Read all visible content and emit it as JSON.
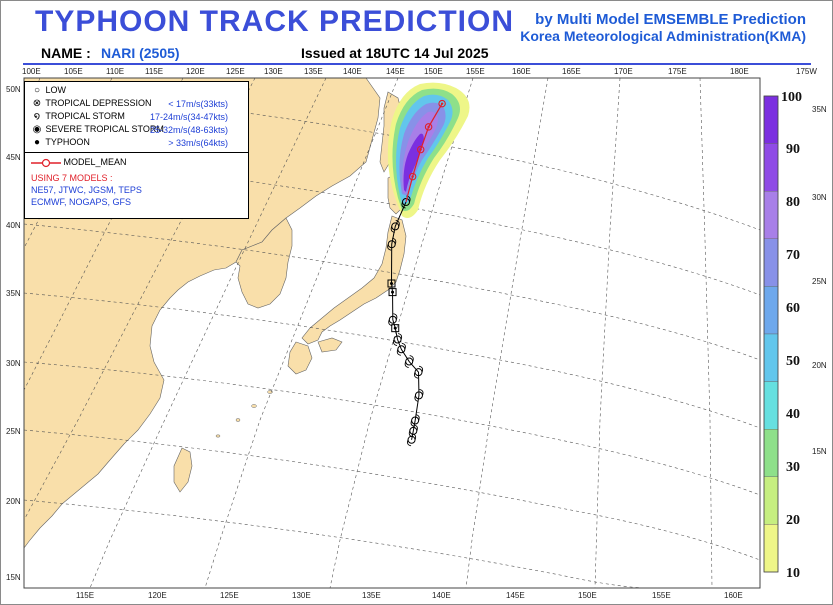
{
  "header": {
    "title": "TYPHOON  TRACK  PREDICTION",
    "subtitle_1": "by Multi Model EMSEMBLE Prediction",
    "subtitle_2": "Korea Meteorological Administration(KMA)",
    "name_label": "NAME :",
    "name_value": "NARI (2505)",
    "issued": "Issued at  18UTC 14 Jul 2025"
  },
  "legend": {
    "items": [
      {
        "icon": "low-circle-icon",
        "label": "LOW",
        "value": ""
      },
      {
        "icon": "tropical-depression-icon",
        "label": "TROPICAL DEPRESSION",
        "value": "< 17m/s(33kts)"
      },
      {
        "icon": "tropical-storm-icon",
        "label": "TROPICAL STORM",
        "value": "17-24m/s(34-47kts)"
      },
      {
        "icon": "severe-tropical-storm-icon",
        "label": "SEVERE TROPICAL STORM",
        "value": "25-32m/s(48-63kts)"
      },
      {
        "icon": "typhoon-icon",
        "label": "TYPHOON",
        "value": "> 33m/s(64kts)"
      }
    ],
    "model_mean": "MODEL_MEAN",
    "using": "USING 7 MODELS :",
    "models_line1": "NE57, JTWC, JGSM, TEPS",
    "models_line2": "ECMWF, NOGAPS, GFS"
  },
  "map": {
    "top_lon_labels": [
      "100E",
      "105E",
      "110E",
      "115E",
      "120E",
      "125E",
      "130E",
      "135E",
      "140E",
      "145E",
      "150E",
      "155E",
      "160E",
      "165E",
      "170E",
      "175E",
      "180E",
      "175W"
    ],
    "bottom_lon_labels": [
      "115E",
      "120E",
      "125E",
      "130E",
      "135E",
      "140E",
      "145E",
      "150E",
      "155E",
      "160E"
    ],
    "left_lat_labels": [
      "50N",
      "45N",
      "40N",
      "35N",
      "30N",
      "25N",
      "20N",
      "15N"
    ],
    "right_lat_labels": [
      "35N",
      "30N",
      "25N",
      "20N",
      "15N"
    ]
  },
  "colorbar": {
    "ticks": [
      "100",
      "90",
      "80",
      "70",
      "60",
      "50",
      "40",
      "30",
      "20",
      "10"
    ],
    "colors": [
      "#7b2fe0",
      "#8f4be6",
      "#a87fe8",
      "#8891e8",
      "#6ea8ec",
      "#62c6ec",
      "#66e0e0",
      "#8ee08a",
      "#c6ee80",
      "#eef688"
    ]
  },
  "colors": {
    "land": "#f9dfaa",
    "sea": "#ffffff",
    "track_observed": "#000000",
    "track_mean": "#e0202a",
    "title": "#3b4ed8"
  },
  "track": {
    "observed": [
      {
        "lon": 140.0,
        "lat": 25.0,
        "cat": "TS"
      },
      {
        "lon": 140.1,
        "lat": 25.6,
        "cat": "TS"
      },
      {
        "lon": 140.2,
        "lat": 26.3,
        "cat": "TS"
      },
      {
        "lon": 140.4,
        "lat": 28.0,
        "cat": "TS"
      },
      {
        "lon": 140.3,
        "lat": 29.6,
        "cat": "TS"
      },
      {
        "lon": 139.6,
        "lat": 30.4,
        "cat": "TS"
      },
      {
        "lon": 139.0,
        "lat": 31.3,
        "cat": "TS"
      },
      {
        "lon": 138.7,
        "lat": 32.0,
        "cat": "TS"
      },
      {
        "lon": 138.5,
        "lat": 32.8,
        "cat": "STS"
      },
      {
        "lon": 138.3,
        "lat": 33.4,
        "cat": "TS"
      },
      {
        "lon": 138.2,
        "lat": 35.3,
        "cat": "STS"
      },
      {
        "lon": 138.1,
        "lat": 35.9,
        "cat": "STS"
      },
      {
        "lon": 138.0,
        "lat": 38.6,
        "cat": "TS"
      },
      {
        "lon": 138.2,
        "lat": 39.8,
        "cat": "TS"
      },
      {
        "lon": 138.9,
        "lat": 41.4,
        "cat": "TS"
      }
    ],
    "forecast_mean": [
      {
        "lon": 138.9,
        "lat": 41.4
      },
      {
        "lon": 139.3,
        "lat": 43.1
      },
      {
        "lon": 139.8,
        "lat": 44.9
      },
      {
        "lon": 140.3,
        "lat": 46.4
      },
      {
        "lon": 141.2,
        "lat": 47.9
      }
    ]
  }
}
